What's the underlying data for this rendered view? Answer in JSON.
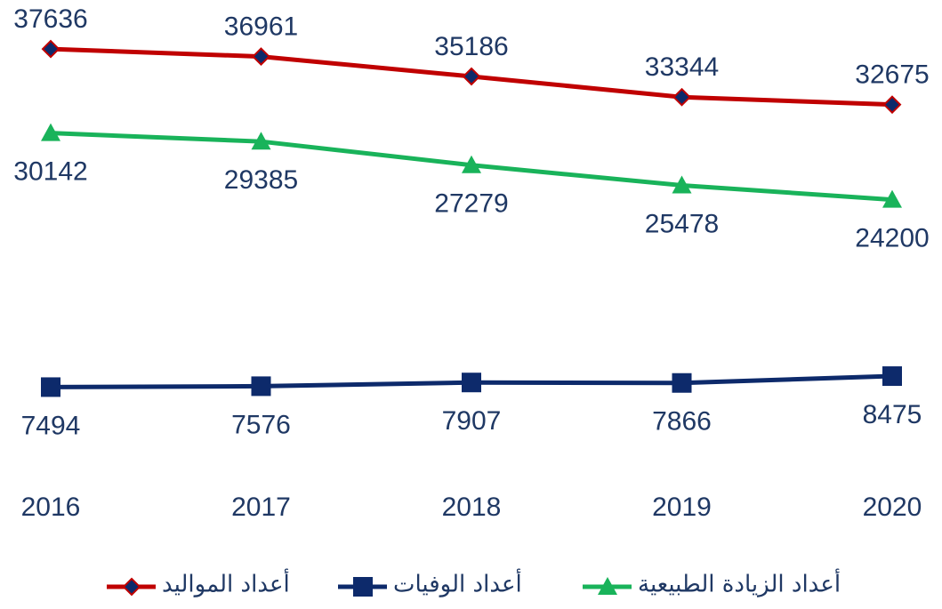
{
  "chart_data": {
    "type": "line",
    "categories": [
      "2016",
      "2017",
      "2018",
      "2019",
      "2020"
    ],
    "series": [
      {
        "name": "أعداد المواليد",
        "color": "#c00000",
        "values": [
          37636,
          36961,
          35186,
          33344,
          32675
        ]
      },
      {
        "name": "أعداد الوفيات",
        "color": "#0d2a6b",
        "values": [
          7494,
          7576,
          7907,
          7866,
          8475
        ]
      },
      {
        "name": "أعداد الزيادة الطبيعية",
        "color": "#19b35a",
        "values": [
          30142,
          29385,
          27279,
          25478,
          24200
        ]
      }
    ],
    "ylim": [
      0,
      42000
    ]
  }
}
